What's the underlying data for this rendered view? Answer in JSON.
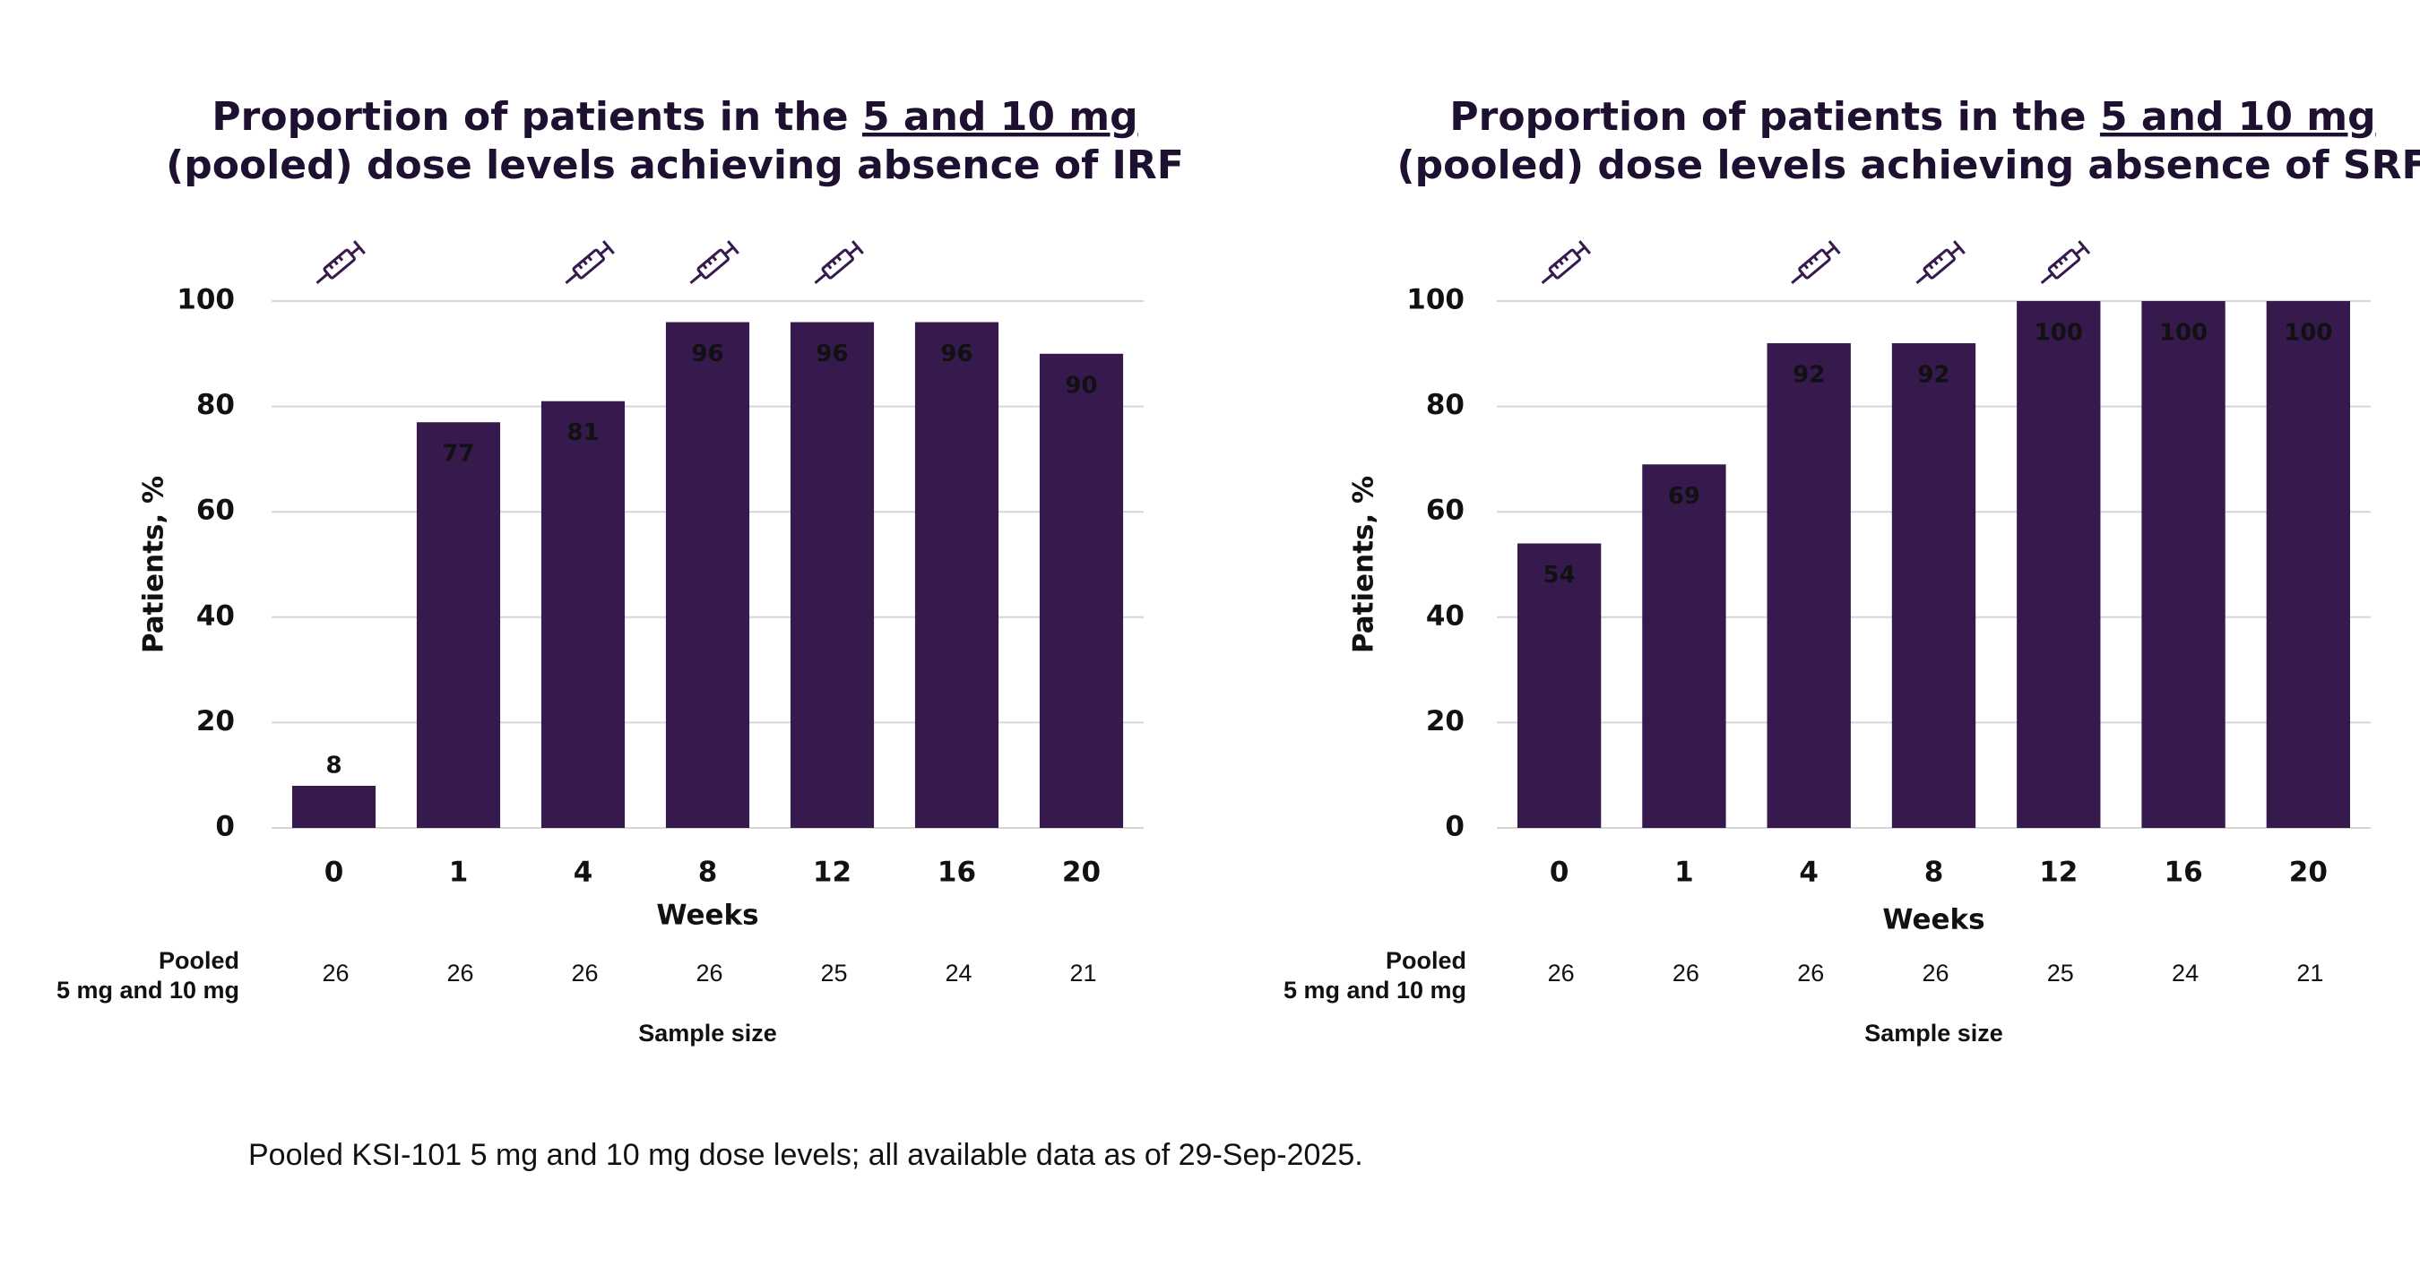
{
  "chart_data": [
    {
      "type": "bar",
      "title": {
        "before": "Proportion of patients in the ",
        "underlined": "5 and 10 mg",
        "line2": "(pooled) dose levels achieving absence of IRF"
      },
      "x_label": "Weeks",
      "y_label": "Patients, %",
      "categories": [
        "0",
        "1",
        "4",
        "8",
        "12",
        "16",
        "20"
      ],
      "values": [
        8,
        77,
        81,
        96,
        96,
        96,
        90
      ],
      "color": "#361a4e",
      "ylim": [
        0,
        100
      ],
      "yticks": [
        0,
        20,
        40,
        60,
        80,
        100
      ],
      "grid": true,
      "sample_row_label": [
        "Pooled",
        "5 mg and 10 mg"
      ],
      "sample_sizes": [
        26,
        26,
        26,
        26,
        25,
        24,
        21
      ],
      "sample_title": "Sample size"
    },
    {
      "type": "bar",
      "title": {
        "before": "Proportion of patients in the ",
        "underlined": "5 and 10 mg",
        "line2": "(pooled) dose levels achieving absence of SRF"
      },
      "x_label": "Weeks",
      "y_label": "Patients, %",
      "categories": [
        "0",
        "1",
        "4",
        "8",
        "12",
        "16",
        "20"
      ],
      "values": [
        54,
        69,
        92,
        92,
        100,
        100,
        100
      ],
      "color": "#361a4e",
      "ylim": [
        0,
        100
      ],
      "yticks": [
        0,
        20,
        40,
        60,
        80,
        100
      ],
      "grid": true,
      "sample_row_label": [
        "Pooled",
        "5 mg and 10 mg"
      ],
      "sample_sizes": [
        26,
        26,
        26,
        26,
        25,
        24,
        21
      ],
      "sample_title": "Sample size"
    }
  ],
  "footnote": "Pooled KSI-101 5 mg and 10 mg dose levels; all available data as of 29-Sep-2025."
}
